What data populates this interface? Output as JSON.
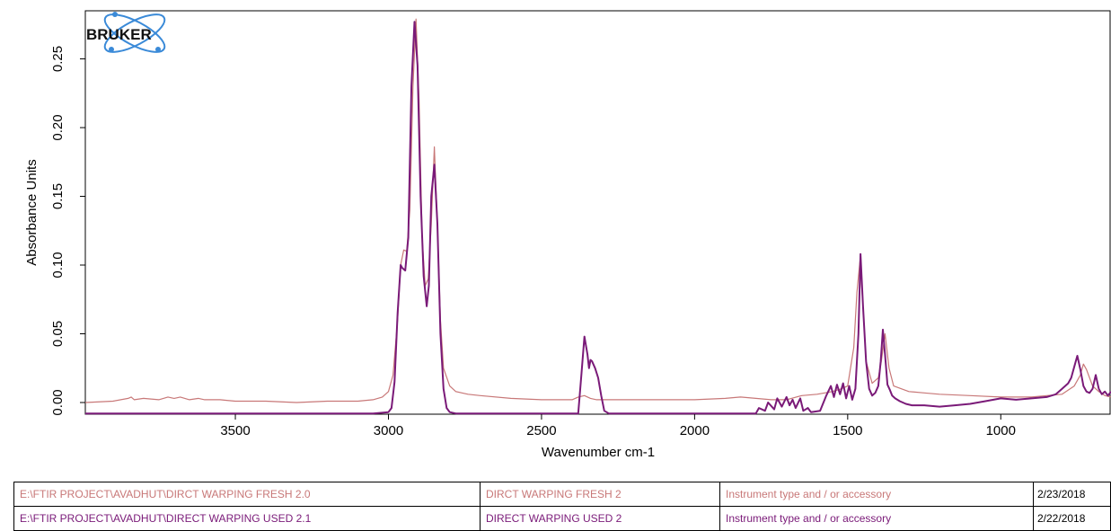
{
  "chart_data": {
    "type": "line",
    "xlabel": "Wavenumber cm-1",
    "ylabel": "Absorbance Units",
    "x_reversed": true,
    "xlim": [
      3990,
      640
    ],
    "ylim": [
      -0.0085,
      0.285
    ],
    "x_ticks": [
      3500,
      3000,
      2500,
      2000,
      1500,
      1000
    ],
    "y_ticks": [
      0.0,
      0.05,
      0.1,
      0.15,
      0.2,
      0.25
    ],
    "y_tick_labels": [
      "0.00",
      "0.05",
      "0.10",
      "0.15",
      "0.20",
      "0.25"
    ],
    "grid": false,
    "series": [
      {
        "color": "#c87878",
        "x": [
          3990,
          3900,
          3850,
          3840,
          3830,
          3800,
          3750,
          3720,
          3700,
          3680,
          3650,
          3620,
          3600,
          3550,
          3500,
          3400,
          3300,
          3200,
          3100,
          3050,
          3020,
          3000,
          2985,
          2970,
          2960,
          2950,
          2940,
          2930,
          2920,
          2910,
          2900,
          2890,
          2880,
          2870,
          2860,
          2850,
          2840,
          2830,
          2820,
          2800,
          2780,
          2760,
          2740,
          2700,
          2600,
          2500,
          2400,
          2380,
          2360,
          2340,
          2320,
          2300,
          2200,
          2100,
          2000,
          1900,
          1850,
          1800,
          1750,
          1700,
          1650,
          1600,
          1550,
          1520,
          1500,
          1480,
          1470,
          1460,
          1450,
          1440,
          1420,
          1400,
          1390,
          1378,
          1365,
          1350,
          1300,
          1250,
          1200,
          1100,
          1000,
          900,
          850,
          800,
          760,
          740,
          730,
          720,
          700,
          680,
          660,
          640
        ],
        "y": [
          0.0,
          0.001,
          0.003,
          0.004,
          0.002,
          0.003,
          0.002,
          0.004,
          0.003,
          0.004,
          0.002,
          0.003,
          0.002,
          0.002,
          0.001,
          0.001,
          0.0,
          0.001,
          0.001,
          0.002,
          0.004,
          0.008,
          0.02,
          0.06,
          0.1,
          0.111,
          0.11,
          0.14,
          0.23,
          0.279,
          0.22,
          0.12,
          0.085,
          0.09,
          0.13,
          0.186,
          0.13,
          0.06,
          0.025,
          0.012,
          0.008,
          0.007,
          0.006,
          0.005,
          0.003,
          0.002,
          0.002,
          0.004,
          0.005,
          0.003,
          0.002,
          0.002,
          0.002,
          0.002,
          0.002,
          0.003,
          0.004,
          0.003,
          0.002,
          0.002,
          0.005,
          0.006,
          0.008,
          0.01,
          0.012,
          0.04,
          0.08,
          0.103,
          0.07,
          0.03,
          0.014,
          0.018,
          0.03,
          0.05,
          0.025,
          0.012,
          0.008,
          0.007,
          0.006,
          0.005,
          0.004,
          0.004,
          0.005,
          0.006,
          0.012,
          0.02,
          0.028,
          0.024,
          0.012,
          0.008,
          0.005,
          0.004
        ]
      },
      {
        "color": "#7a1a78",
        "x": [
          3990,
          3900,
          3800,
          3720,
          3700,
          3650,
          3600,
          3500,
          3400,
          3300,
          3200,
          3100,
          3050,
          3000,
          2990,
          2980,
          2970,
          2960,
          2955,
          2945,
          2935,
          2925,
          2915,
          2905,
          2895,
          2885,
          2875,
          2868,
          2860,
          2850,
          2840,
          2830,
          2820,
          2810,
          2800,
          2780,
          2700,
          2600,
          2500,
          2400,
          2380,
          2370,
          2360,
          2350,
          2345,
          2340,
          2335,
          2325,
          2315,
          2305,
          2295,
          2280,
          2200,
          2100,
          2000,
          1900,
          1800,
          1790,
          1770,
          1760,
          1740,
          1730,
          1715,
          1700,
          1690,
          1680,
          1670,
          1655,
          1645,
          1630,
          1620,
          1590,
          1570,
          1555,
          1545,
          1535,
          1525,
          1515,
          1505,
          1495,
          1485,
          1475,
          1465,
          1458,
          1450,
          1440,
          1430,
          1420,
          1410,
          1400,
          1392,
          1385,
          1378,
          1370,
          1362,
          1355,
          1345,
          1330,
          1310,
          1290,
          1250,
          1200,
          1150,
          1100,
          1050,
          1000,
          950,
          900,
          850,
          820,
          800,
          780,
          770,
          760,
          750,
          740,
          730,
          720,
          710,
          700,
          690,
          680,
          670,
          660,
          650,
          640
        ],
        "y": [
          -0.008,
          -0.008,
          -0.008,
          -0.008,
          -0.008,
          -0.008,
          -0.008,
          -0.008,
          -0.008,
          -0.008,
          -0.008,
          -0.008,
          -0.008,
          -0.007,
          -0.004,
          0.015,
          0.065,
          0.1,
          0.098,
          0.096,
          0.12,
          0.23,
          0.277,
          0.245,
          0.15,
          0.092,
          0.07,
          0.085,
          0.15,
          0.173,
          0.13,
          0.05,
          0.01,
          -0.004,
          -0.007,
          -0.008,
          -0.008,
          -0.008,
          -0.008,
          -0.008,
          -0.008,
          0.02,
          0.048,
          0.035,
          0.025,
          0.031,
          0.03,
          0.025,
          0.018,
          0.005,
          -0.006,
          -0.008,
          -0.008,
          -0.008,
          -0.008,
          -0.008,
          -0.008,
          -0.004,
          -0.006,
          0.0,
          -0.005,
          0.003,
          -0.003,
          0.004,
          -0.002,
          0.002,
          -0.004,
          0.003,
          -0.006,
          -0.004,
          -0.007,
          -0.006,
          0.005,
          0.012,
          0.004,
          0.013,
          0.006,
          0.014,
          0.003,
          0.012,
          0.002,
          0.01,
          0.05,
          0.108,
          0.07,
          0.03,
          0.01,
          0.005,
          0.007,
          0.012,
          0.03,
          0.053,
          0.035,
          0.013,
          0.009,
          0.005,
          0.003,
          0.001,
          -0.001,
          -0.002,
          -0.002,
          -0.003,
          -0.002,
          -0.001,
          0.001,
          0.003,
          0.002,
          0.003,
          0.004,
          0.006,
          0.01,
          0.014,
          0.018,
          0.026,
          0.034,
          0.024,
          0.012,
          0.008,
          0.007,
          0.01,
          0.02,
          0.01,
          0.006,
          0.008,
          0.005,
          0.008
        ]
      }
    ]
  },
  "logo": {
    "text": "BRUKER"
  },
  "legend": {
    "rows": [
      {
        "path": "E:\\FTIR PROJECT\\AVADHUT\\DIRCT WARPING FRESH 2.0",
        "sample": "DIRCT WARPING FRESH 2",
        "instrument": "Instrument type and / or accessory",
        "date": "2/23/2018",
        "color": "#c87878"
      },
      {
        "path": "E:\\FTIR PROJECT\\AVADHUT\\DIRECT WARPING USED 2.1",
        "sample": "DIRECT WARPING USED 2",
        "instrument": "Instrument type and / or accessory",
        "date": "2/22/2018",
        "color": "#7a1a78"
      }
    ]
  }
}
